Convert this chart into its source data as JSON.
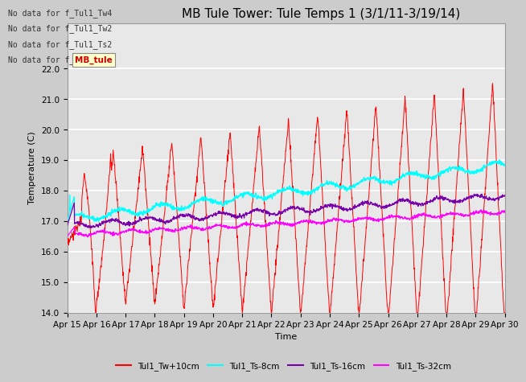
{
  "title": "MB Tule Tower: Tule Temps 1 (3/1/11-3/19/14)",
  "xlabel": "Time",
  "ylabel": "Temperature (C)",
  "ylim": [
    14.0,
    23.5
  ],
  "yticks": [
    14.0,
    15.0,
    16.0,
    17.0,
    18.0,
    19.0,
    20.0,
    21.0,
    22.0
  ],
  "xtick_labels": [
    "Apr 15",
    "Apr 16",
    "Apr 17",
    "Apr 18",
    "Apr 19",
    "Apr 20",
    "Apr 21",
    "Apr 22",
    "Apr 23",
    "Apr 24",
    "Apr 25",
    "Apr 26",
    "Apr 27",
    "Apr 28",
    "Apr 29",
    "Apr 30"
  ],
  "line_colors": {
    "Tw": "#ff0000",
    "Ts8": "#00ffff",
    "Ts16": "#7700aa",
    "Ts32": "#ff00ff"
  },
  "legend_labels": [
    "Tul1_Tw+10cm",
    "Tul1_Ts-8cm",
    "Tul1_Ts-16cm",
    "Tul1_Ts-32cm"
  ],
  "legend_colors": [
    "#ff0000",
    "#00ffff",
    "#7700aa",
    "#ff00ff"
  ],
  "no_data_text": [
    "No data for f_Tul1_Tw4",
    "No data for f_Tul1_Tw2",
    "No data for f_Tul1_Ts2",
    "No data for f_Tul1_Ts"
  ],
  "annotation_box": "MB_tule",
  "fig_bg_color": "#cccccc",
  "plot_bg_color": "#e8e8e8",
  "grid_color": "#ffffff",
  "title_fontsize": 11,
  "axis_fontsize": 8,
  "tick_fontsize": 7.5
}
